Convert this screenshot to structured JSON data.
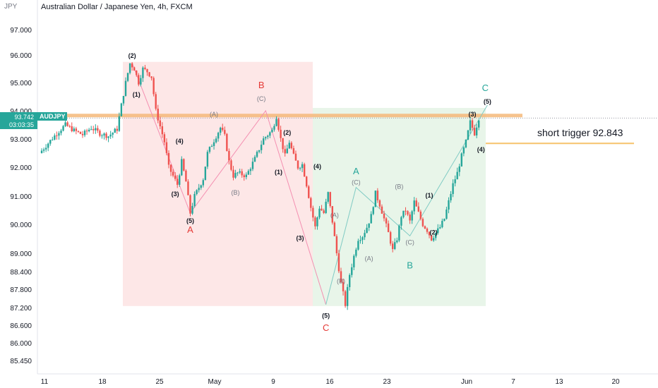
{
  "header": {
    "title": "Australian Dollar / Japanese Yen, 4h, FXCM",
    "currency": "JPY"
  },
  "ticker": {
    "symbol": "AUDJPY",
    "price": "93.742",
    "countdown": "03:03:35"
  },
  "colors": {
    "up": "#26a69a",
    "down": "#ef5350",
    "red_zone": "#fde7e7",
    "green_zone": "#e8f5e9",
    "resistance": "#f5b97a",
    "trigger": "#f6c26b",
    "wave_red": "#e53935",
    "wave_teal": "#26a69a"
  },
  "chart_data": {
    "type": "candlestick",
    "title": "Australian Dollar / Japanese Yen, 4h, FXCM",
    "y_ticks": [
      "97.000",
      "96.000",
      "95.000",
      "94.000",
      "93.000",
      "92.000",
      "91.000",
      "90.000",
      "89.000",
      "88.400",
      "87.800",
      "87.200",
      "86.600",
      "86.000",
      "85.450"
    ],
    "x_ticks": [
      "11",
      "18",
      "25",
      "May",
      "9",
      "16",
      "23",
      "Jun",
      "7",
      "13",
      "20"
    ],
    "annotation": "short trigger 92.843",
    "levels": [
      {
        "name": "resistance",
        "value": 93.83
      },
      {
        "name": "short trigger",
        "value": 92.843
      }
    ],
    "zones": [
      {
        "color": "red",
        "x_from": "Apr 21",
        "x_to": "May 13",
        "y_from": 87.25,
        "y_to": 95.75
      },
      {
        "color": "green",
        "x_from": "May 13",
        "x_to": "Jun 3",
        "y_from": 87.25,
        "y_to": 94.1
      }
    ],
    "path": [
      {
        "t": 0,
        "p": 92.5
      },
      {
        "t": 2,
        "p": 92.85
      },
      {
        "t": 4,
        "p": 93.2
      },
      {
        "t": 6,
        "p": 93.5
      },
      {
        "t": 8,
        "p": 93.3
      },
      {
        "t": 10,
        "p": 93.15
      },
      {
        "t": 12,
        "p": 93.4
      },
      {
        "t": 14,
        "p": 93.2
      },
      {
        "t": 16,
        "p": 93.1
      },
      {
        "t": 18,
        "p": 93.35
      },
      {
        "t": 19,
        "p": 94.2
      },
      {
        "t": 20,
        "p": 95.0
      },
      {
        "t": 21,
        "p": 95.7
      },
      {
        "t": 22,
        "p": 95.5
      },
      {
        "t": 23,
        "p": 95.0
      },
      {
        "t": 24,
        "p": 95.5
      },
      {
        "t": 25,
        "p": 95.4
      },
      {
        "t": 26,
        "p": 95.2
      },
      {
        "t": 27,
        "p": 94.0
      },
      {
        "t": 29,
        "p": 92.9
      },
      {
        "t": 30,
        "p": 92.0
      },
      {
        "t": 32,
        "p": 91.4
      },
      {
        "t": 33,
        "p": 92.2
      },
      {
        "t": 34,
        "p": 91.5
      },
      {
        "t": 35,
        "p": 90.4
      },
      {
        "t": 36,
        "p": 91.0
      },
      {
        "t": 38,
        "p": 91.6
      },
      {
        "t": 39,
        "p": 92.5
      },
      {
        "t": 40,
        "p": 92.8
      },
      {
        "t": 42,
        "p": 93.4
      },
      {
        "t": 43,
        "p": 93.1
      },
      {
        "t": 44,
        "p": 92.2
      },
      {
        "t": 45,
        "p": 91.7
      },
      {
        "t": 46,
        "p": 91.8
      },
      {
        "t": 48,
        "p": 91.7
      },
      {
        "t": 50,
        "p": 92.3
      },
      {
        "t": 52,
        "p": 93.0
      },
      {
        "t": 54,
        "p": 93.3
      },
      {
        "t": 55,
        "p": 93.8
      },
      {
        "t": 56,
        "p": 93.0
      },
      {
        "t": 57,
        "p": 92.4
      },
      {
        "t": 58,
        "p": 92.9
      },
      {
        "t": 59,
        "p": 92.4
      },
      {
        "t": 60,
        "p": 92.0
      },
      {
        "t": 61,
        "p": 92.1
      },
      {
        "t": 62,
        "p": 91.4
      },
      {
        "t": 63,
        "p": 90.6
      },
      {
        "t": 64,
        "p": 89.9
      },
      {
        "t": 65,
        "p": 90.6
      },
      {
        "t": 66,
        "p": 90.4
      },
      {
        "t": 67,
        "p": 91.1
      },
      {
        "t": 68,
        "p": 90.1
      },
      {
        "t": 69,
        "p": 89.0
      },
      {
        "t": 70,
        "p": 88.0
      },
      {
        "t": 71,
        "p": 87.3
      },
      {
        "t": 72,
        "p": 88.3
      },
      {
        "t": 73,
        "p": 88.9
      },
      {
        "t": 74,
        "p": 89.5
      },
      {
        "t": 75,
        "p": 89.6
      },
      {
        "t": 76,
        "p": 89.9
      },
      {
        "t": 77,
        "p": 90.3
      },
      {
        "t": 78,
        "p": 91.1
      },
      {
        "t": 79,
        "p": 90.7
      },
      {
        "t": 80,
        "p": 90.2
      },
      {
        "t": 81,
        "p": 89.7
      },
      {
        "t": 82,
        "p": 89.1
      },
      {
        "t": 83,
        "p": 89.5
      },
      {
        "t": 84,
        "p": 90.3
      },
      {
        "t": 85,
        "p": 90.5
      },
      {
        "t": 86,
        "p": 90.1
      },
      {
        "t": 87,
        "p": 90.8
      },
      {
        "t": 88,
        "p": 90.4
      },
      {
        "t": 89,
        "p": 90.0
      },
      {
        "t": 90,
        "p": 89.8
      },
      {
        "t": 91,
        "p": 89.5
      },
      {
        "t": 92,
        "p": 89.7
      },
      {
        "t": 93,
        "p": 89.9
      },
      {
        "t": 94,
        "p": 90.2
      },
      {
        "t": 95,
        "p": 90.8
      },
      {
        "t": 96,
        "p": 91.4
      },
      {
        "t": 97,
        "p": 91.8
      },
      {
        "t": 98,
        "p": 92.4
      },
      {
        "t": 99,
        "p": 92.9
      },
      {
        "t": 100,
        "p": 93.6
      },
      {
        "t": 101,
        "p": 93.2
      },
      {
        "t": 102,
        "p": 93.742
      }
    ],
    "wave_labels": [
      {
        "text": "(2)",
        "t": 21.5,
        "p": 96.0,
        "kind": "minor"
      },
      {
        "text": "(1)",
        "t": 22.5,
        "p": 94.6,
        "kind": "minor"
      },
      {
        "text": "(4)",
        "t": 32.5,
        "p": 92.95,
        "kind": "minor"
      },
      {
        "text": "(3)",
        "t": 31.5,
        "p": 91.1,
        "kind": "minor"
      },
      {
        "text": "(5)",
        "t": 35,
        "p": 90.15,
        "kind": "minor"
      },
      {
        "text": "A",
        "t": 35,
        "p": 89.8,
        "kind": "wave_red"
      },
      {
        "text": "(A)",
        "t": 40.5,
        "p": 93.9,
        "kind": "sub"
      },
      {
        "text": "(B)",
        "t": 45.5,
        "p": 91.15,
        "kind": "sub"
      },
      {
        "text": "B",
        "t": 51.5,
        "p": 94.9,
        "kind": "wave_red"
      },
      {
        "text": "(C)",
        "t": 51.5,
        "p": 94.45,
        "kind": "sub"
      },
      {
        "text": "(2)",
        "t": 57.5,
        "p": 93.25,
        "kind": "minor"
      },
      {
        "text": "(1)",
        "t": 55.5,
        "p": 91.85,
        "kind": "minor"
      },
      {
        "text": "(4)",
        "t": 64.5,
        "p": 92.05,
        "kind": "minor"
      },
      {
        "text": "(3)",
        "t": 60.5,
        "p": 89.55,
        "kind": "minor"
      },
      {
        "text": "(5)",
        "t": 66.5,
        "p": 86.95,
        "kind": "minor"
      },
      {
        "text": "C",
        "t": 66.5,
        "p": 86.5,
        "kind": "wave_red"
      },
      {
        "text": "(A)",
        "t": 68.5,
        "p": 90.35,
        "kind": "sub"
      },
      {
        "text": "(B)",
        "t": 70,
        "p": 88.1,
        "kind": "sub"
      },
      {
        "text": "A",
        "t": 73.5,
        "p": 91.85,
        "kind": "wave_teal"
      },
      {
        "text": "(C)",
        "t": 73.5,
        "p": 91.5,
        "kind": "sub"
      },
      {
        "text": "(A)",
        "t": 76.5,
        "p": 88.85,
        "kind": "sub"
      },
      {
        "text": "(B)",
        "t": 83.5,
        "p": 91.35,
        "kind": "sub"
      },
      {
        "text": "(C)",
        "t": 86,
        "p": 89.4,
        "kind": "sub"
      },
      {
        "text": "B",
        "t": 86,
        "p": 88.6,
        "kind": "wave_teal"
      },
      {
        "text": "(1)",
        "t": 90.5,
        "p": 91.05,
        "kind": "minor"
      },
      {
        "text": "(2)",
        "t": 91.5,
        "p": 89.75,
        "kind": "minor"
      },
      {
        "text": "(3)",
        "t": 100.5,
        "p": 93.9,
        "kind": "minor"
      },
      {
        "text": "(4)",
        "t": 102.5,
        "p": 92.65,
        "kind": "minor"
      },
      {
        "text": "(5)",
        "t": 104,
        "p": 94.35,
        "kind": "minor"
      },
      {
        "text": "C",
        "t": 103.5,
        "p": 94.8,
        "kind": "wave_teal"
      }
    ],
    "wave_lines": [
      {
        "color": "red",
        "points": [
          {
            "t": 21.5,
            "p": 95.7
          },
          {
            "t": 35,
            "p": 90.4
          },
          {
            "t": 52.5,
            "p": 94.0
          },
          {
            "t": 66.5,
            "p": 87.3
          }
        ]
      },
      {
        "color": "teal",
        "points": [
          {
            "t": 66.5,
            "p": 87.3
          },
          {
            "t": 73.5,
            "p": 91.3
          },
          {
            "t": 86,
            "p": 89.6
          },
          {
            "t": 104,
            "p": 94.2
          }
        ]
      }
    ]
  }
}
